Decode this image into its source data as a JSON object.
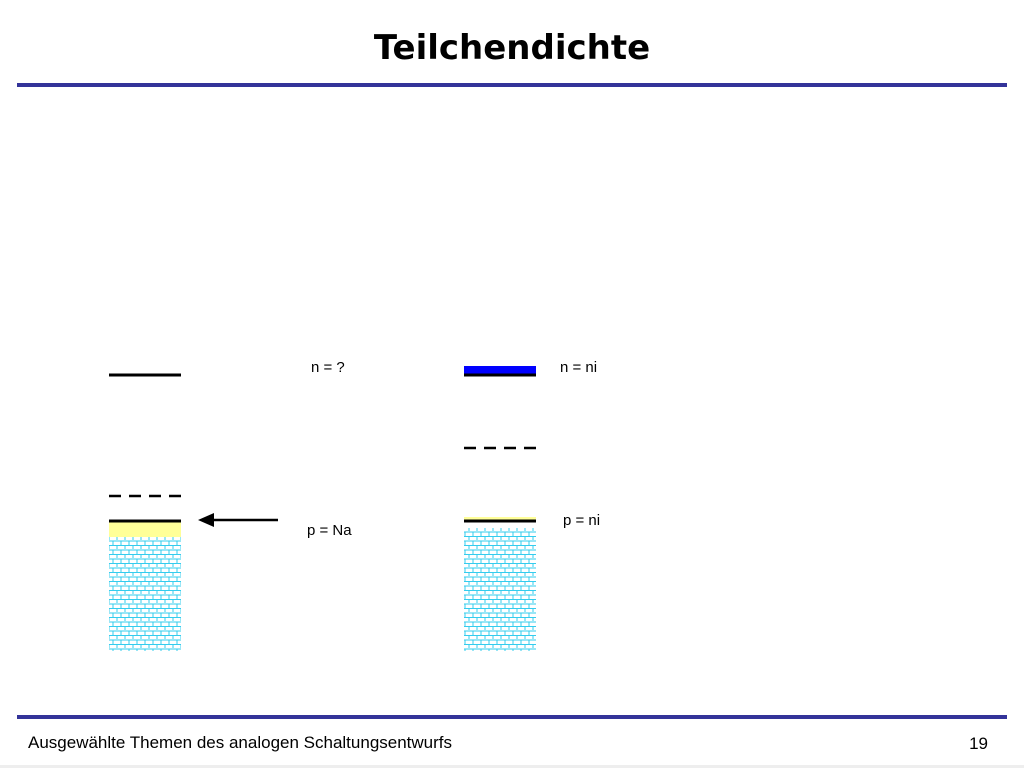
{
  "slide": {
    "title": "Teilchendichte",
    "footer": "Ausgewählte Themen des analogen Schaltungsentwurfs",
    "page_number": "19"
  },
  "colors": {
    "rule": "#333399",
    "band_line": "#000000",
    "blue_band": "#0000ff",
    "yellow_band": "#ffff99",
    "pattern": "#33ccee"
  },
  "left_diagram": {
    "n_label": "n = ?",
    "p_label": "p = Na"
  },
  "right_diagram": {
    "n_label": "n = ni",
    "p_label": "p = ni"
  }
}
